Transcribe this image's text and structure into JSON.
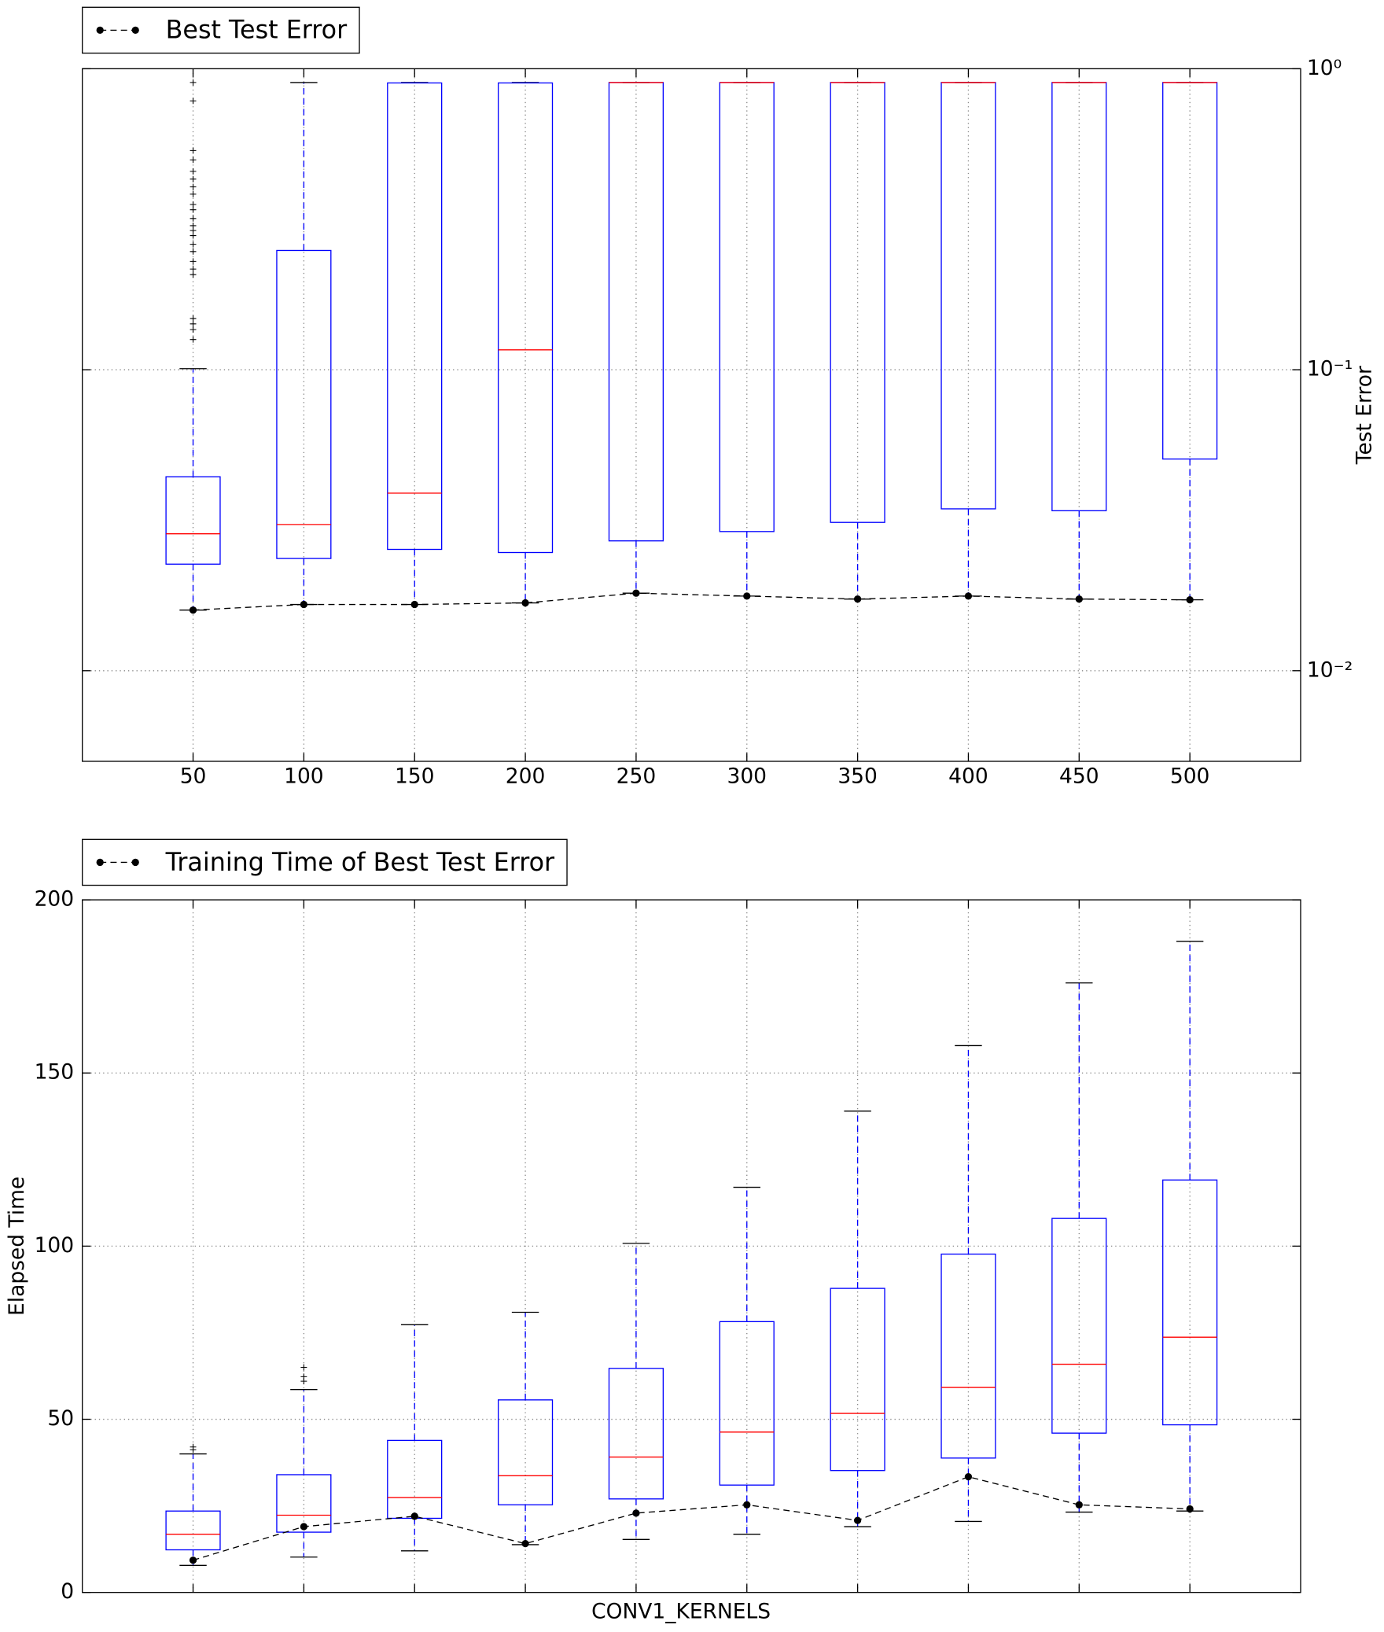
{
  "chart_data": [
    {
      "type": "box",
      "log_scale": true,
      "grid": true,
      "y_axis_side": "right",
      "legend": "upper left",
      "ylabel": "Test Error",
      "categories": [
        "50",
        "100",
        "150",
        "200",
        "250",
        "300",
        "350",
        "400",
        "450",
        "500"
      ],
      "ylim": [
        0.005,
        1
      ],
      "yticks": [
        {
          "value": 0.01,
          "label": "10⁻²"
        },
        {
          "value": 0.1,
          "label": "10⁻¹"
        },
        {
          "value": 1,
          "label": "10⁰"
        }
      ],
      "box_color": "#0000ff",
      "median_color": "#ff0000",
      "boxes": [
        {
          "whislo": 0.0159,
          "q1": 0.0226,
          "med": 0.0285,
          "q3": 0.0441,
          "whishi": 0.1008,
          "fliers": [
            0.9,
            0.782,
            0.535,
            0.498,
            0.456,
            0.43,
            0.405,
            0.383,
            0.354,
            0.34,
            0.318,
            0.301,
            0.29,
            0.279,
            0.261,
            0.247,
            0.229,
            0.216,
            0.207,
            0.148,
            0.142,
            0.136,
            0.126
          ]
        },
        {
          "whislo": 0.0166,
          "q1": 0.0236,
          "med": 0.0306,
          "q3": 0.249,
          "whishi": 0.9,
          "fliers": []
        },
        {
          "whislo": 0.0166,
          "q1": 0.0253,
          "med": 0.0389,
          "q3": 0.897,
          "whishi": 0.9,
          "fliers": []
        },
        {
          "whislo": 0.0168,
          "q1": 0.0247,
          "med": 0.1164,
          "q3": 0.897,
          "whishi": 0.9,
          "fliers": []
        },
        {
          "whislo": 0.0181,
          "q1": 0.027,
          "med": 0.9,
          "q3": 0.9,
          "whishi": 0.9,
          "fliers": []
        },
        {
          "whislo": 0.0177,
          "q1": 0.029,
          "med": 0.9,
          "q3": 0.9,
          "whishi": 0.9,
          "fliers": []
        },
        {
          "whislo": 0.0173,
          "q1": 0.0311,
          "med": 0.9,
          "q3": 0.9,
          "whishi": 0.9,
          "fliers": []
        },
        {
          "whislo": 0.0177,
          "q1": 0.0345,
          "med": 0.9,
          "q3": 0.9,
          "whishi": 0.9,
          "fliers": []
        },
        {
          "whislo": 0.0173,
          "q1": 0.034,
          "med": 0.9,
          "q3": 0.9,
          "whishi": 0.9,
          "fliers": []
        },
        {
          "whislo": 0.0172,
          "q1": 0.0505,
          "med": 0.9,
          "q3": 0.9,
          "whishi": 0.9,
          "fliers": []
        }
      ],
      "series": [
        {
          "name": "Best Test Error",
          "color": "#000000",
          "values": [
            0.0159,
            0.0166,
            0.0166,
            0.0168,
            0.0181,
            0.0177,
            0.0173,
            0.0177,
            0.0173,
            0.0172
          ]
        }
      ]
    },
    {
      "type": "box",
      "log_scale": false,
      "grid": true,
      "y_axis_side": "left",
      "legend": "upper left",
      "ylabel": "Elapsed Time",
      "xlabel": "CONV1_KERNELS",
      "categories": [
        null,
        null,
        null,
        null,
        null,
        null,
        null,
        null,
        null,
        null
      ],
      "ylim": [
        0,
        200
      ],
      "yticks": [
        0,
        50,
        100,
        150,
        200
      ],
      "box_color": "#0000ff",
      "median_color": "#ff0000",
      "boxes": [
        {
          "whislo": 7.8,
          "q1": 12.3,
          "med": 16.8,
          "q3": 23.5,
          "whishi": 40,
          "fliers": [
            41.2,
            42
          ]
        },
        {
          "whislo": 10.2,
          "q1": 17.4,
          "med": 22.3,
          "q3": 34,
          "whishi": 58.6,
          "fliers": [
            61,
            62.3,
            65
          ]
        },
        {
          "whislo": 12,
          "q1": 21.4,
          "med": 27.4,
          "q3": 43.9,
          "whishi": 77.3,
          "fliers": []
        },
        {
          "whislo": 13.8,
          "q1": 25.3,
          "med": 33.7,
          "q3": 55.6,
          "whishi": 80.9,
          "fliers": []
        },
        {
          "whislo": 15.3,
          "q1": 27,
          "med": 39.1,
          "q3": 64.7,
          "whishi": 100.8,
          "fliers": []
        },
        {
          "whislo": 16.8,
          "q1": 31,
          "med": 46.3,
          "q3": 78.2,
          "whishi": 117,
          "fliers": []
        },
        {
          "whislo": 19,
          "q1": 35.2,
          "med": 51.7,
          "q3": 87.8,
          "whishi": 139,
          "fliers": []
        },
        {
          "whislo": 20.5,
          "q1": 38.8,
          "med": 59.2,
          "q3": 97.7,
          "whishi": 157.9,
          "fliers": []
        },
        {
          "whislo": 23.2,
          "q1": 46,
          "med": 65.9,
          "q3": 108,
          "whishi": 176,
          "fliers": []
        },
        {
          "whislo": 23.5,
          "q1": 48.4,
          "med": 73.7,
          "q3": 119.1,
          "whishi": 188,
          "fliers": []
        }
      ],
      "series": [
        {
          "name": "Training Time of Best Test Error",
          "color": "#000000",
          "values": [
            9.3,
            19,
            22,
            14.1,
            22.9,
            25.3,
            20.8,
            33.4,
            25.3,
            24.1
          ]
        }
      ]
    }
  ]
}
